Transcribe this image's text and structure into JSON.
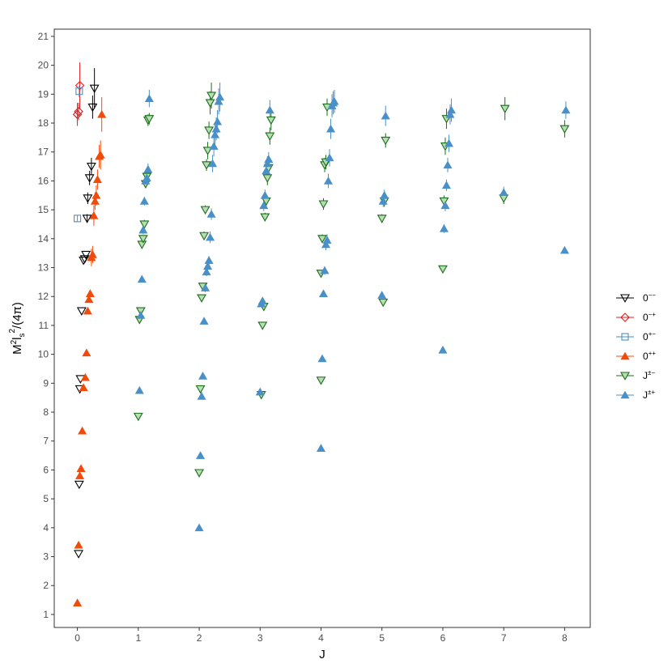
{
  "chart_data": {
    "type": "scatter",
    "title": "",
    "xlabel": "J",
    "ylabel_main": "M",
    "ylabel_sup": "2",
    "ylabel_l": "l",
    "ylabel_sub": "s",
    "ylabel_sup2": "2",
    "ylabel_tail": "/(4π)",
    "xlim": [
      -0.38,
      8.42
    ],
    "ylim": [
      0.55,
      21.25
    ],
    "x_ticks": [
      0,
      1,
      2,
      3,
      4,
      5,
      6,
      7,
      8
    ],
    "y_ticks": [
      1,
      2,
      3,
      4,
      5,
      6,
      7,
      8,
      9,
      10,
      11,
      12,
      13,
      14,
      15,
      16,
      17,
      18,
      19,
      20,
      21
    ],
    "grid": false,
    "legend_position": "right",
    "series": [
      {
        "name": "0",
        "name_sup": "−−",
        "marker": "triangle-down-open",
        "color": "#000000",
        "fill": "none",
        "points": [
          [
            0.02,
            3.1
          ],
          [
            0.03,
            5.5
          ],
          [
            0.04,
            8.8
          ],
          [
            0.05,
            9.15
          ],
          [
            0.07,
            11.5
          ],
          [
            0.1,
            13.25
          ],
          [
            0.12,
            13.3
          ],
          [
            0.14,
            13.45
          ],
          [
            0.16,
            14.7
          ],
          [
            0.17,
            15.4
          ],
          [
            0.2,
            16.1
          ],
          [
            0.23,
            16.5
          ],
          [
            0.25,
            18.55
          ],
          [
            0.28,
            19.2
          ]
        ],
        "err": [
          0,
          0,
          0,
          0,
          0,
          0,
          0,
          0,
          0.15,
          0.2,
          0.25,
          0.3,
          0.4,
          0.7
        ]
      },
      {
        "name": "0",
        "name_sup": "−+",
        "marker": "diamond-open",
        "color": "#e41a1c",
        "fill": "none",
        "points": [
          [
            0.0,
            18.3
          ],
          [
            0.02,
            18.4
          ],
          [
            0.04,
            19.3
          ]
        ],
        "err": [
          0.4,
          0.3,
          0.8
        ]
      },
      {
        "name": "0",
        "name_sup": "+−",
        "marker": "square-open",
        "color": "#4a90c8",
        "fill": "none",
        "points": [
          [
            0.0,
            14.7
          ],
          [
            0.03,
            19.1
          ]
        ],
        "err": [
          0.1,
          0.2
        ]
      },
      {
        "name": "0",
        "name_sup": "++",
        "marker": "triangle-up-filled",
        "color": "#f04b0a",
        "fill": "#f04b0a",
        "points": [
          [
            0.0,
            1.4
          ],
          [
            0.02,
            3.4
          ],
          [
            0.04,
            5.8
          ],
          [
            0.06,
            6.05
          ],
          [
            0.08,
            7.35
          ],
          [
            0.1,
            8.85
          ],
          [
            0.13,
            9.2
          ],
          [
            0.15,
            10.05
          ],
          [
            0.17,
            11.5
          ],
          [
            0.19,
            11.9
          ],
          [
            0.21,
            12.1
          ],
          [
            0.23,
            13.35
          ],
          [
            0.25,
            13.45
          ],
          [
            0.27,
            14.8
          ],
          [
            0.29,
            15.3
          ],
          [
            0.31,
            15.5
          ],
          [
            0.33,
            16.05
          ],
          [
            0.36,
            16.85
          ],
          [
            0.38,
            16.9
          ],
          [
            0.4,
            18.3
          ]
        ],
        "err": [
          0,
          0,
          0,
          0,
          0,
          0,
          0,
          0,
          0.1,
          0.1,
          0.1,
          0.3,
          0.3,
          0.35,
          0.3,
          0.35,
          0.35,
          0.4,
          0.5,
          0.6
        ]
      },
      {
        "name": "J",
        "name_sup": "±−",
        "marker": "triangle-down-open",
        "color": "#1a6e1a",
        "fill": "#b8dcb3",
        "points": [
          [
            1.0,
            7.85
          ],
          [
            1.02,
            11.2
          ],
          [
            1.04,
            11.5
          ],
          [
            1.06,
            13.8
          ],
          [
            1.08,
            14.0
          ],
          [
            1.1,
            14.5
          ],
          [
            1.12,
            15.9
          ],
          [
            1.14,
            16.15
          ],
          [
            1.16,
            18.1
          ],
          [
            1.18,
            18.15
          ],
          [
            2.0,
            5.9
          ],
          [
            2.02,
            8.8
          ],
          [
            2.04,
            11.95
          ],
          [
            2.06,
            12.35
          ],
          [
            2.08,
            14.1
          ],
          [
            2.1,
            15.0
          ],
          [
            2.12,
            16.55
          ],
          [
            2.14,
            17.05
          ],
          [
            2.16,
            17.75
          ],
          [
            2.18,
            18.7
          ],
          [
            2.2,
            18.95
          ],
          [
            3.02,
            8.6
          ],
          [
            3.04,
            11.0
          ],
          [
            3.06,
            11.65
          ],
          [
            3.08,
            14.75
          ],
          [
            3.1,
            15.3
          ],
          [
            3.12,
            16.1
          ],
          [
            3.14,
            16.45
          ],
          [
            3.16,
            17.55
          ],
          [
            3.18,
            18.1
          ],
          [
            4.0,
            9.1
          ],
          [
            4.0,
            12.8
          ],
          [
            4.02,
            14.0
          ],
          [
            4.04,
            15.2
          ],
          [
            4.06,
            16.55
          ],
          [
            4.08,
            16.65
          ],
          [
            4.1,
            18.55
          ],
          [
            5.02,
            11.8
          ],
          [
            5.0,
            14.7
          ],
          [
            5.04,
            15.3
          ],
          [
            5.06,
            17.4
          ],
          [
            6.0,
            12.95
          ],
          [
            6.02,
            15.3
          ],
          [
            6.04,
            17.2
          ],
          [
            6.06,
            18.15
          ],
          [
            7.0,
            15.4
          ],
          [
            7.02,
            18.5
          ],
          [
            8.0,
            17.8
          ]
        ],
        "err": [
          0.1,
          0.1,
          0.1,
          0.1,
          0.1,
          0.15,
          0.15,
          0.15,
          0.2,
          0.2,
          0.1,
          0.1,
          0.1,
          0.1,
          0.15,
          0.15,
          0.2,
          0.3,
          0.3,
          0.4,
          0.45,
          0.1,
          0.1,
          0.1,
          0.15,
          0.2,
          0.25,
          0.25,
          0.3,
          0.35,
          0.1,
          0.1,
          0.15,
          0.2,
          0.25,
          0.25,
          0.3,
          0.1,
          0.15,
          0.2,
          0.25,
          0.1,
          0.2,
          0.3,
          0.35,
          0.2,
          0.4,
          0.3
        ]
      },
      {
        "name": "J",
        "name_sup": "±+",
        "marker": "triangle-up-filled",
        "color": "#4a90c8",
        "fill": "#4a90c8",
        "points": [
          [
            1.02,
            8.75
          ],
          [
            1.04,
            11.35
          ],
          [
            1.06,
            12.6
          ],
          [
            1.08,
            14.3
          ],
          [
            1.1,
            15.3
          ],
          [
            1.12,
            16.0
          ],
          [
            1.14,
            16.1
          ],
          [
            1.16,
            16.4
          ],
          [
            1.18,
            18.85
          ],
          [
            2.0,
            4.0
          ],
          [
            2.02,
            6.5
          ],
          [
            2.04,
            8.55
          ],
          [
            2.06,
            9.25
          ],
          [
            2.08,
            11.15
          ],
          [
            2.1,
            12.3
          ],
          [
            2.12,
            12.85
          ],
          [
            2.14,
            13.05
          ],
          [
            2.16,
            13.25
          ],
          [
            2.18,
            14.05
          ],
          [
            2.2,
            14.85
          ],
          [
            2.22,
            16.6
          ],
          [
            2.24,
            17.2
          ],
          [
            2.26,
            17.6
          ],
          [
            2.28,
            17.8
          ],
          [
            2.3,
            18.05
          ],
          [
            2.32,
            18.75
          ],
          [
            2.34,
            18.9
          ],
          [
            3.0,
            8.7
          ],
          [
            3.02,
            11.75
          ],
          [
            3.04,
            11.85
          ],
          [
            3.06,
            15.15
          ],
          [
            3.08,
            15.5
          ],
          [
            3.1,
            16.35
          ],
          [
            3.12,
            16.6
          ],
          [
            3.14,
            16.75
          ],
          [
            3.16,
            18.45
          ],
          [
            4.0,
            6.75
          ],
          [
            4.02,
            9.85
          ],
          [
            4.04,
            12.1
          ],
          [
            4.06,
            12.9
          ],
          [
            4.08,
            13.8
          ],
          [
            4.1,
            13.95
          ],
          [
            4.12,
            16.0
          ],
          [
            4.14,
            16.8
          ],
          [
            4.16,
            17.8
          ],
          [
            4.18,
            18.6
          ],
          [
            4.2,
            18.7
          ],
          [
            4.22,
            18.75
          ],
          [
            5.0,
            12.05
          ],
          [
            5.02,
            15.3
          ],
          [
            5.04,
            15.5
          ],
          [
            5.06,
            18.25
          ],
          [
            6.0,
            10.15
          ],
          [
            6.02,
            14.35
          ],
          [
            6.04,
            15.15
          ],
          [
            6.06,
            15.85
          ],
          [
            6.08,
            16.55
          ],
          [
            6.1,
            17.3
          ],
          [
            6.12,
            18.3
          ],
          [
            6.14,
            18.45
          ],
          [
            7.0,
            15.6
          ],
          [
            8.0,
            13.6
          ],
          [
            8.02,
            18.45
          ]
        ],
        "err": [
          0.1,
          0.1,
          0.1,
          0.15,
          0.15,
          0.2,
          0.2,
          0.2,
          0.3,
          0.05,
          0.05,
          0.1,
          0.1,
          0.1,
          0.15,
          0.15,
          0.15,
          0.15,
          0.2,
          0.2,
          0.3,
          0.35,
          0.35,
          0.4,
          0.4,
          0.45,
          0.5,
          0.1,
          0.1,
          0.1,
          0.2,
          0.2,
          0.25,
          0.25,
          0.25,
          0.35,
          0.05,
          0.1,
          0.1,
          0.15,
          0.2,
          0.2,
          0.25,
          0.3,
          0.35,
          0.4,
          0.4,
          0.4,
          0.1,
          0.2,
          0.2,
          0.35,
          0.1,
          0.15,
          0.2,
          0.2,
          0.25,
          0.3,
          0.35,
          0.4,
          0.2,
          0.1,
          0.3
        ]
      }
    ]
  }
}
